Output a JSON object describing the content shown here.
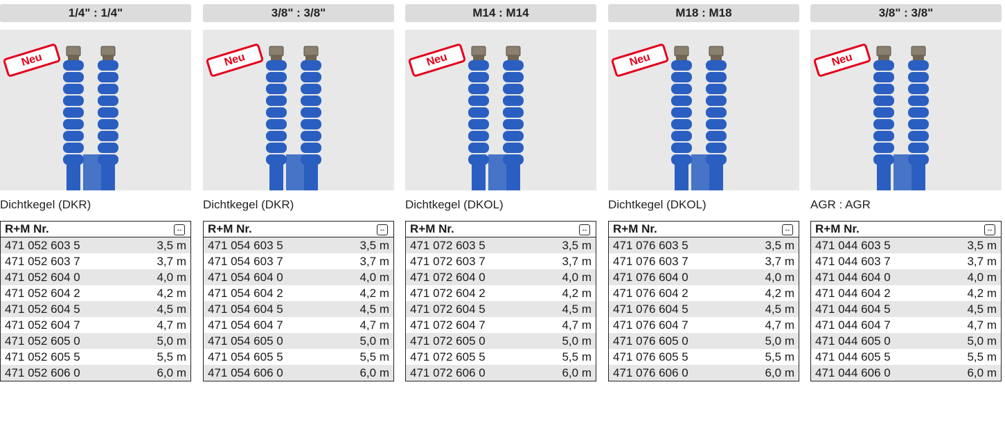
{
  "badge_text": "Neu",
  "table_header_number": "R+M Nr.",
  "length_icon": "length-arrows-icon",
  "hose_color": "#2a5fc1",
  "badge_color": "#e3001b",
  "columns": [
    {
      "header": "1/4\" : 1/4\"",
      "connection": "Dichtkegel (DKR)",
      "rows": [
        {
          "nr": "471 052 603 5",
          "len": "3,5 m"
        },
        {
          "nr": "471 052 603 7",
          "len": "3,7 m"
        },
        {
          "nr": "471 052 604 0",
          "len": "4,0 m"
        },
        {
          "nr": "471 052 604 2",
          "len": "4,2 m"
        },
        {
          "nr": "471 052 604 5",
          "len": "4,5 m"
        },
        {
          "nr": "471 052 604 7",
          "len": "4,7 m"
        },
        {
          "nr": "471 052 605 0",
          "len": "5,0 m"
        },
        {
          "nr": "471 052 605 5",
          "len": "5,5 m"
        },
        {
          "nr": "471 052 606 0",
          "len": "6,0 m"
        }
      ]
    },
    {
      "header": "3/8\" : 3/8\"",
      "connection": "Dichtkegel (DKR)",
      "rows": [
        {
          "nr": "471 054 603 5",
          "len": "3,5 m"
        },
        {
          "nr": "471 054 603 7",
          "len": "3,7 m"
        },
        {
          "nr": "471 054 604 0",
          "len": "4,0 m"
        },
        {
          "nr": "471 054 604 2",
          "len": "4,2 m"
        },
        {
          "nr": "471 054 604 5",
          "len": "4,5 m"
        },
        {
          "nr": "471 054 604 7",
          "len": "4,7 m"
        },
        {
          "nr": "471 054 605 0",
          "len": "5,0 m"
        },
        {
          "nr": "471 054 605 5",
          "len": "5,5 m"
        },
        {
          "nr": "471 054 606 0",
          "len": "6,0 m"
        }
      ]
    },
    {
      "header": "M14 : M14",
      "connection": "Dichtkegel (DKOL)",
      "rows": [
        {
          "nr": "471 072 603 5",
          "len": "3,5 m"
        },
        {
          "nr": "471 072 603 7",
          "len": "3,7 m"
        },
        {
          "nr": "471 072 604 0",
          "len": "4,0 m"
        },
        {
          "nr": "471 072 604 2",
          "len": "4,2 m"
        },
        {
          "nr": "471 072 604 5",
          "len": "4,5 m"
        },
        {
          "nr": "471 072 604 7",
          "len": "4,7 m"
        },
        {
          "nr": "471 072 605 0",
          "len": "5,0 m"
        },
        {
          "nr": "471 072 605 5",
          "len": "5,5 m"
        },
        {
          "nr": "471 072 606 0",
          "len": "6,0 m"
        }
      ]
    },
    {
      "header": "M18 : M18",
      "connection": "Dichtkegel (DKOL)",
      "rows": [
        {
          "nr": "471 076 603 5",
          "len": "3,5 m"
        },
        {
          "nr": "471 076 603 7",
          "len": "3,7 m"
        },
        {
          "nr": "471 076 604 0",
          "len": "4,0 m"
        },
        {
          "nr": "471 076 604 2",
          "len": "4,2 m"
        },
        {
          "nr": "471 076 604 5",
          "len": "4,5 m"
        },
        {
          "nr": "471 076 604 7",
          "len": "4,7 m"
        },
        {
          "nr": "471 076 605 0",
          "len": "5,0 m"
        },
        {
          "nr": "471 076 605 5",
          "len": "5,5 m"
        },
        {
          "nr": "471 076 606 0",
          "len": "6,0 m"
        }
      ]
    },
    {
      "header": "3/8\" : 3/8\"",
      "connection": "AGR : AGR",
      "rows": [
        {
          "nr": "471 044 603 5",
          "len": "3,5 m"
        },
        {
          "nr": "471 044 603 7",
          "len": "3,7 m"
        },
        {
          "nr": "471 044 604 0",
          "len": "4,0 m"
        },
        {
          "nr": "471 044 604 2",
          "len": "4,2 m"
        },
        {
          "nr": "471 044 604 5",
          "len": "4,5 m"
        },
        {
          "nr": "471 044 604 7",
          "len": "4,7 m"
        },
        {
          "nr": "471 044 605 0",
          "len": "5,0 m"
        },
        {
          "nr": "471 044 605 5",
          "len": "5,5 m"
        },
        {
          "nr": "471 044 606 0",
          "len": "6,0 m"
        }
      ]
    }
  ]
}
